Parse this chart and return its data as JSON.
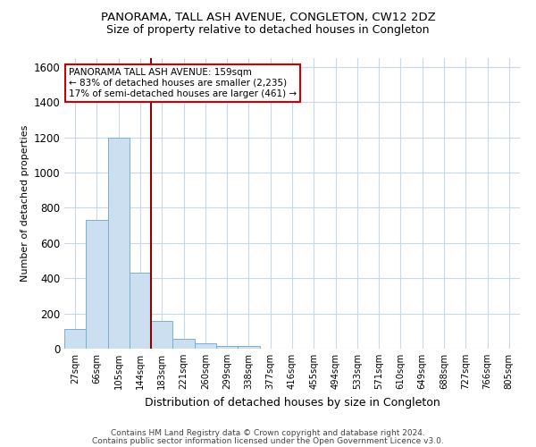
{
  "title": "PANORAMA, TALL ASH AVENUE, CONGLETON, CW12 2DZ",
  "subtitle": "Size of property relative to detached houses in Congleton",
  "xlabel": "Distribution of detached houses by size in Congleton",
  "ylabel": "Number of detached properties",
  "footnote1": "Contains HM Land Registry data © Crown copyright and database right 2024.",
  "footnote2": "Contains public sector information licensed under the Open Government Licence v3.0.",
  "bar_labels": [
    "27sqm",
    "66sqm",
    "105sqm",
    "144sqm",
    "183sqm",
    "221sqm",
    "260sqm",
    "299sqm",
    "338sqm",
    "377sqm",
    "416sqm",
    "455sqm",
    "494sqm",
    "533sqm",
    "571sqm",
    "610sqm",
    "649sqm",
    "688sqm",
    "727sqm",
    "766sqm",
    "805sqm"
  ],
  "bar_values": [
    110,
    730,
    1200,
    430,
    155,
    55,
    30,
    15,
    15,
    0,
    0,
    0,
    0,
    0,
    0,
    0,
    0,
    0,
    0,
    0,
    0
  ],
  "bar_color": "#ccdff0",
  "bar_edgecolor": "#7bafd4",
  "vline_color": "#8b0000",
  "ylim": [
    0,
    1650
  ],
  "yticks": [
    0,
    200,
    400,
    600,
    800,
    1000,
    1200,
    1400,
    1600
  ],
  "annotation_line1": "PANORAMA TALL ASH AVENUE: 159sqm",
  "annotation_line2": "← 83% of detached houses are smaller (2,235)",
  "annotation_line3": "17% of semi-detached houses are larger (461) →",
  "background_color": "#ffffff",
  "grid_color": "#c8d8e8",
  "title_fontsize": 9.5,
  "subtitle_fontsize": 9.0,
  "xlabel_fontsize": 9.0,
  "ylabel_fontsize": 8.0,
  "tick_fontsize": 8.5,
  "xtick_fontsize": 7.2,
  "annot_fontsize": 7.5,
  "footnote_fontsize": 6.5
}
